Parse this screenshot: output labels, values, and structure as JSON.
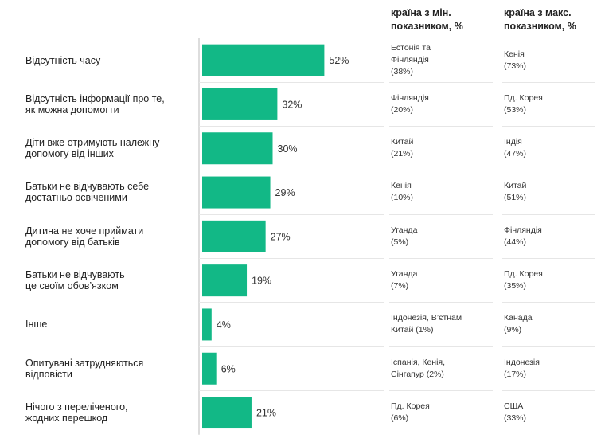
{
  "headers": {
    "min": "країна з мін.\nпоказником, %",
    "max": "країна з макс.\nпоказником, %"
  },
  "colors": {
    "bar": "#12b886",
    "axis": "#bbbbbb",
    "separator": "#e6e6e6"
  },
  "chart_data": {
    "type": "bar",
    "orientation": "horizontal",
    "categories": [
      "Відсутність часу",
      "Відсутність інформації про те,\nяк можна допомогти",
      "Діти вже отримують належну\nдопомогу від інших",
      "Батьки не відчувають себе\nдостатньо освіченими",
      "Дитина не хоче приймати\nдопомогу від батьків",
      "Батьки не відчувають\nце своїм обов’язком",
      "Інше",
      "Опитувані затрудняються відповісти",
      "Нічого з переліченого,\nжодних перешкод"
    ],
    "values": [
      52,
      32,
      30,
      29,
      27,
      19,
      4,
      6,
      21
    ],
    "value_labels": [
      "52%",
      "32%",
      "30%",
      "29%",
      "27%",
      "19%",
      "4%",
      "6%",
      "21%"
    ],
    "xlim": [
      0,
      100
    ],
    "grid": false
  },
  "table": {
    "min": [
      "Естонія та\nФінляндія\n(38%)",
      "Фінляндія\n(20%)",
      "Китай\n(21%)",
      "Кенія\n(10%)",
      "Уганда\n(5%)",
      "Уганда\n(7%)",
      "Індонезія, В’єтнам\nКитай (1%)",
      "Іспанія, Кенія,\nСінгапур (2%)",
      "Пд. Корея\n(6%)"
    ],
    "max": [
      "Кенія\n(73%)",
      "Пд. Корея\n(53%)",
      "Індія\n(47%)",
      "Китай\n(51%)",
      "Фінляндія\n(44%)",
      "Пд. Корея\n(35%)",
      "Канада\n(9%)",
      "Індонезія\n(17%)",
      "США\n(33%)"
    ]
  }
}
